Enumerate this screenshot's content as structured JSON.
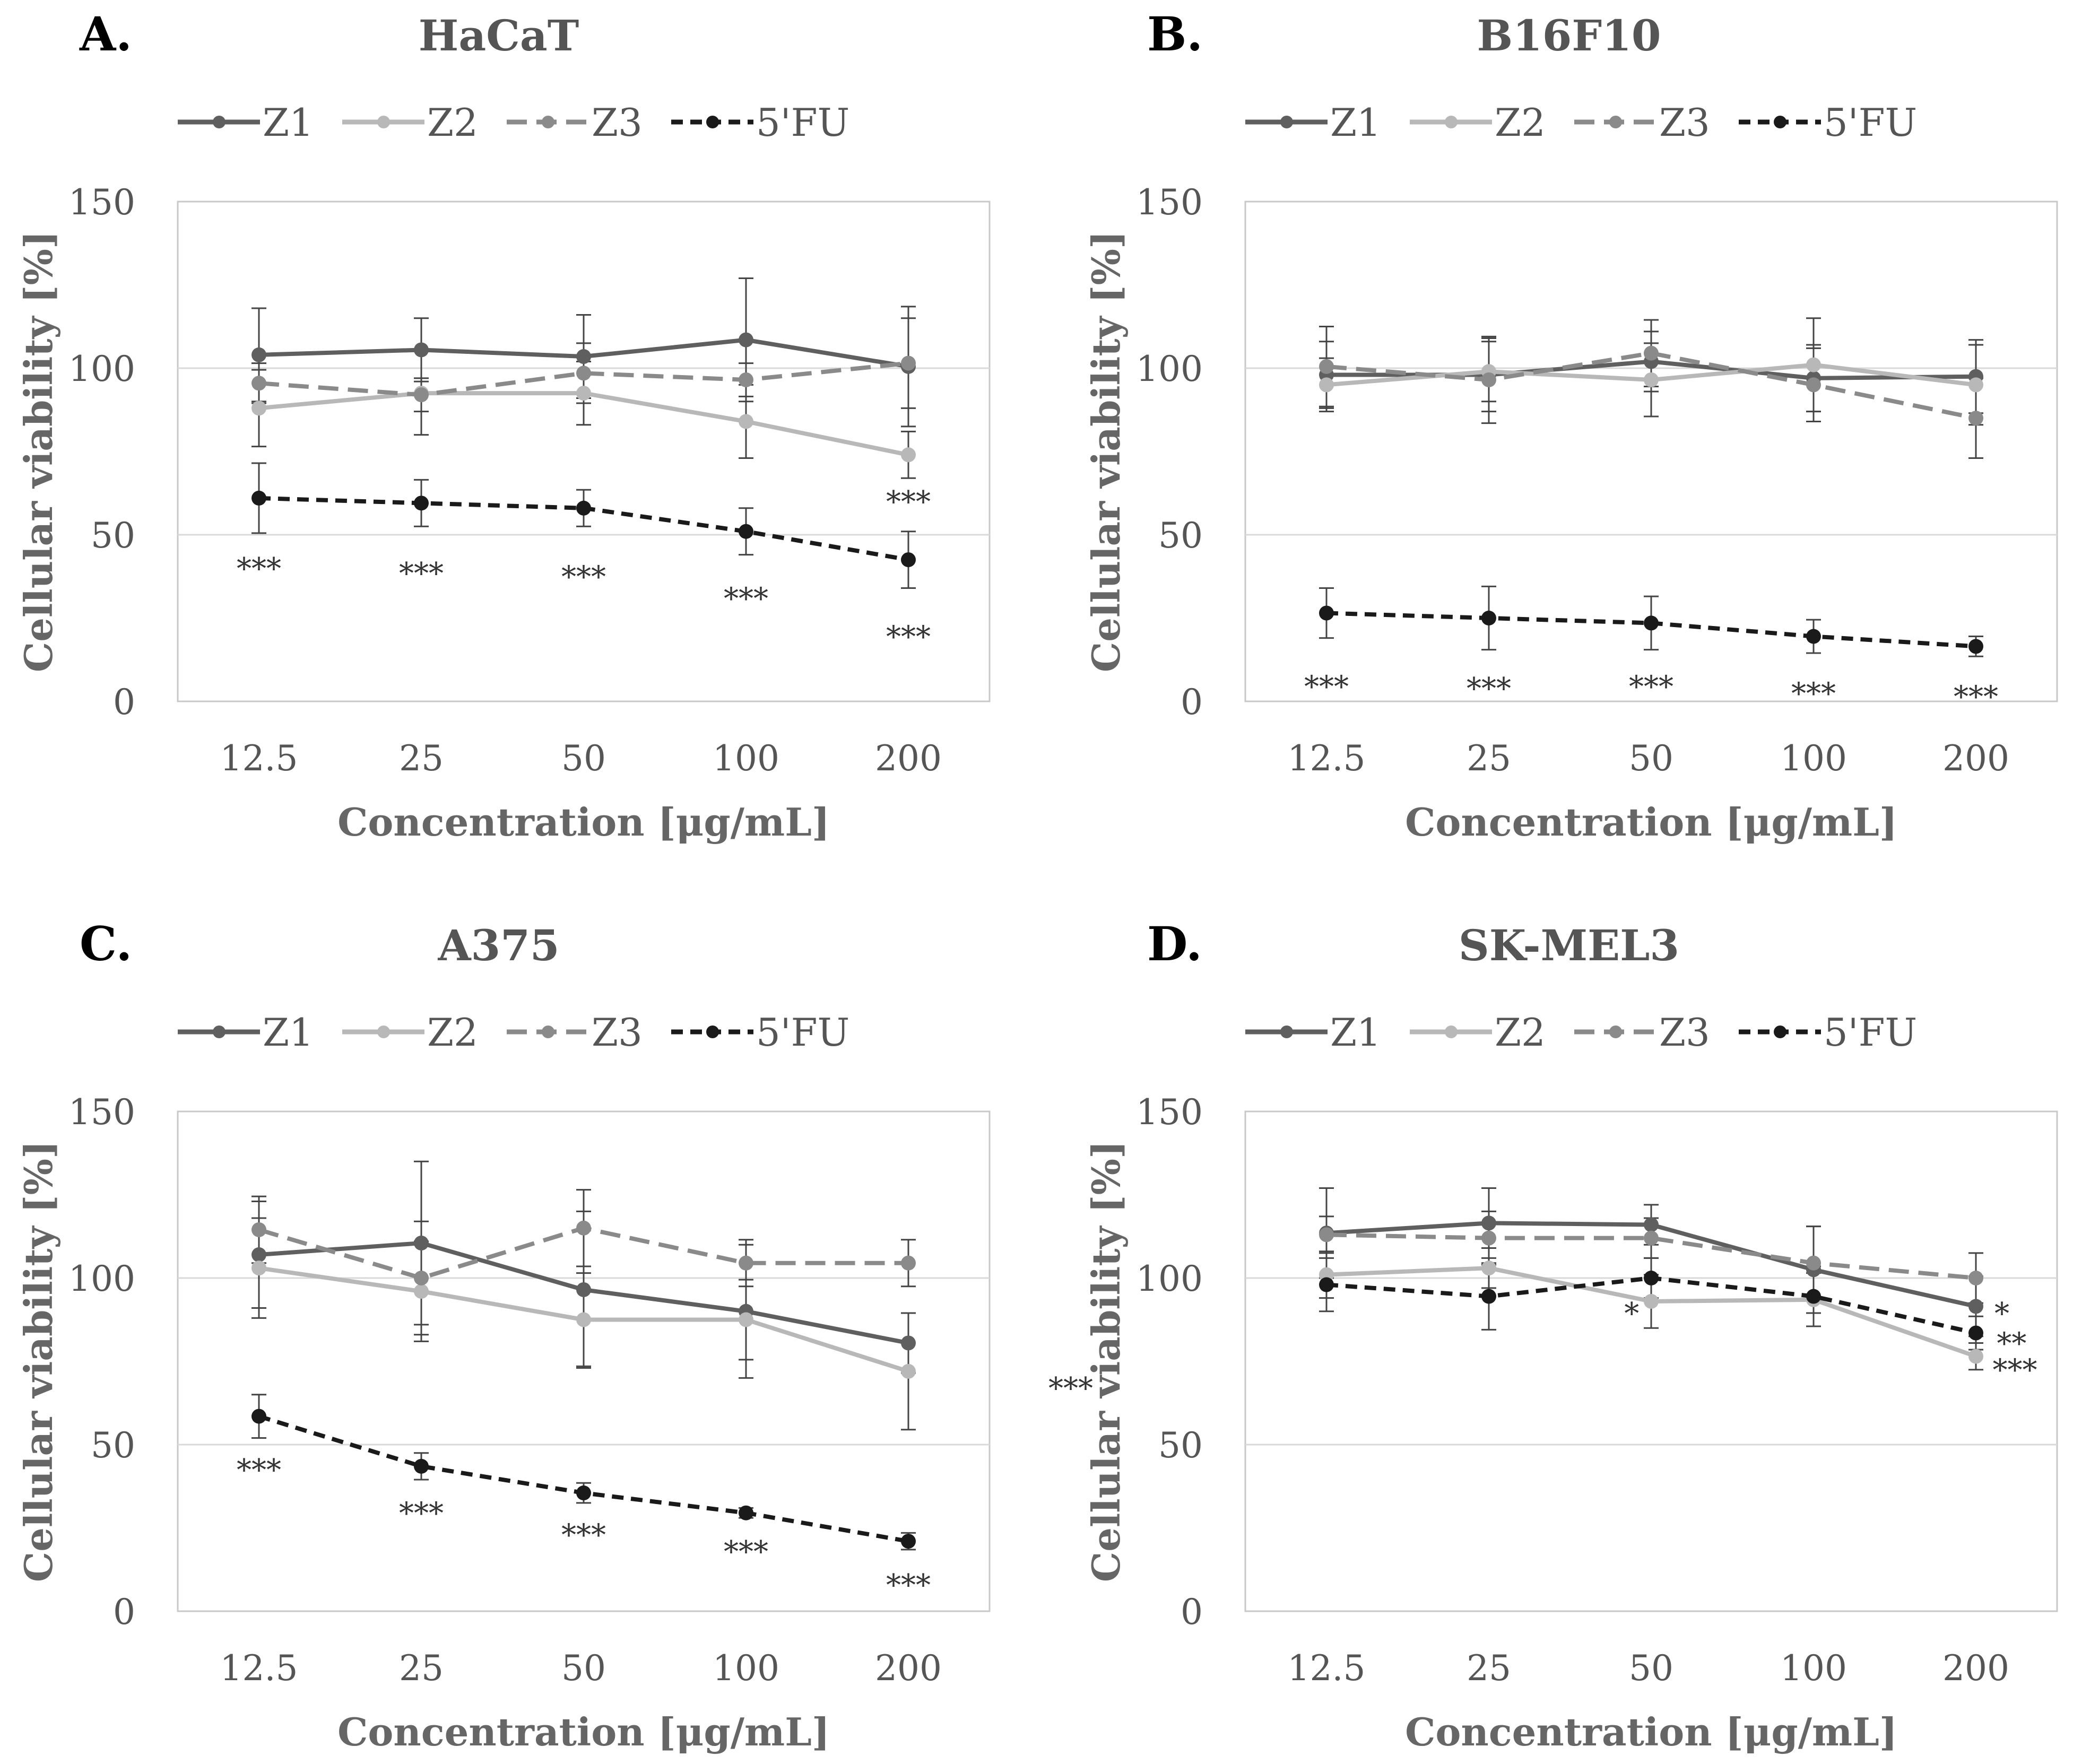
{
  "figure": {
    "shared_axes": {
      "xlabel": "Concentration [μg/mL]",
      "ylabel": "Cellular viability [%]"
    }
  },
  "legend": [
    {
      "name": "Z1",
      "color": "#5f5f5f",
      "dashed": false
    },
    {
      "name": "Z2",
      "color": "#b8b8b8",
      "dashed": false
    },
    {
      "name": "Z3",
      "color": "#8a8a8a",
      "dashed": true
    },
    {
      "name": "5'FU",
      "color": "#1a1a1a",
      "dashed": true
    }
  ],
  "chart_data": [
    {
      "panel": "A.",
      "title": "HaCaT",
      "type": "line",
      "categories": [
        "12.5",
        "25",
        "50",
        "100",
        "200"
      ],
      "xlabel": "Concentration [μg/mL]",
      "ylabel": "Cellular viability [%]",
      "ylim": [
        0,
        150
      ],
      "yticks": [
        0,
        50,
        100,
        150
      ],
      "grid": true,
      "legend_position": "top",
      "series": [
        {
          "name": "Z1",
          "values": [
            104,
            105.5,
            103.5,
            108.5,
            100.5
          ],
          "errors": [
            14,
            9.5,
            12.5,
            18.5,
            18
          ]
        },
        {
          "name": "Z2",
          "values": [
            88,
            92.5,
            92.5,
            84,
            74
          ],
          "errors": [
            11.5,
            12.5,
            9.5,
            11,
            7
          ]
        },
        {
          "name": "Z3",
          "values": [
            95.5,
            92,
            98.5,
            96.5,
            101.5
          ],
          "errors": [
            6,
            5,
            9,
            5,
            13.5
          ]
        },
        {
          "name": "5'FU",
          "values": [
            61,
            59.5,
            58,
            51,
            42.5
          ],
          "errors": [
            10.5,
            7,
            5.5,
            7,
            8.5
          ]
        }
      ],
      "annotations": [
        {
          "text": "***",
          "category": "12.5",
          "value": 40
        },
        {
          "text": "***",
          "category": "25",
          "value": 38.5
        },
        {
          "text": "***",
          "category": "50",
          "value": 37.5
        },
        {
          "text": "***",
          "category": "100",
          "value": 31
        },
        {
          "text": "***",
          "category": "200",
          "value": 19.5
        },
        {
          "text": "***",
          "category": "200",
          "value": 60
        }
      ]
    },
    {
      "panel": "B.",
      "title": "B16F10",
      "type": "line",
      "categories": [
        "12.5",
        "25",
        "50",
        "100",
        "200"
      ],
      "xlabel": "Concentration [μg/mL]",
      "ylabel": "Cellular viability [%]",
      "ylim": [
        0,
        150
      ],
      "yticks": [
        0,
        50,
        100,
        150
      ],
      "grid": true,
      "legend_position": "top",
      "series": [
        {
          "name": "Z1",
          "values": [
            98,
            98,
            102,
            97,
            97.5
          ],
          "errors": [
            10,
            11,
            9,
            10,
            11
          ]
        },
        {
          "name": "Z2",
          "values": [
            95,
            99,
            96.5,
            101,
            95
          ],
          "errors": [
            8,
            9,
            11,
            14,
            12
          ]
        },
        {
          "name": "Z3",
          "values": [
            100.5,
            96.5,
            104.5,
            95,
            85
          ],
          "errors": [
            12,
            13,
            10,
            11,
            12
          ]
        },
        {
          "name": "5'FU",
          "values": [
            26.5,
            25,
            23.5,
            19.5,
            16.5
          ],
          "errors": [
            7.5,
            9.5,
            8,
            5,
            3
          ]
        }
      ],
      "annotations": [
        {
          "text": "***",
          "category": "12.5",
          "value": 4.5
        },
        {
          "text": "***",
          "category": "25",
          "value": 4
        },
        {
          "text": "***",
          "category": "50",
          "value": 4.5
        },
        {
          "text": "***",
          "category": "100",
          "value": 2.5
        },
        {
          "text": "***",
          "category": "200",
          "value": 1.5
        }
      ]
    },
    {
      "panel": "C.",
      "title": "A375",
      "type": "line",
      "categories": [
        "12.5",
        "25",
        "50",
        "100",
        "200"
      ],
      "xlabel": "Concentration [μg/mL]",
      "ylabel": "Cellular viability [%]",
      "ylim": [
        0,
        150
      ],
      "yticks": [
        0,
        50,
        100,
        150
      ],
      "grid": true,
      "legend_position": "top",
      "series": [
        {
          "name": "Z1",
          "values": [
            107,
            110.5,
            96.5,
            90,
            80.5
          ],
          "errors": [
            16,
            24.5,
            23.5,
            20,
            9
          ]
        },
        {
          "name": "Z2",
          "values": [
            103,
            96,
            87.5,
            87.5,
            72
          ],
          "errors": [
            15,
            15,
            14,
            12,
            17.5
          ]
        },
        {
          "name": "Z3",
          "values": [
            114.5,
            100,
            115,
            104.5,
            104.5
          ],
          "errors": [
            10,
            17,
            11.5,
            7,
            7
          ]
        },
        {
          "name": "5'FU",
          "values": [
            58.5,
            43.5,
            35.5,
            29.5,
            21
          ],
          "errors": [
            6.5,
            4,
            3,
            1.5,
            2.5
          ]
        }
      ],
      "annotations": [
        {
          "text": "***",
          "category": "12.5",
          "value": 42.5
        },
        {
          "text": "***",
          "category": "25",
          "value": 29.5
        },
        {
          "text": "***",
          "category": "50",
          "value": 23
        },
        {
          "text": "***",
          "category": "100",
          "value": 18
        },
        {
          "text": "***",
          "category": "200",
          "value": 8
        },
        {
          "text": "***",
          "category": "200",
          "value": 67,
          "dx": 1
        }
      ]
    },
    {
      "panel": "D.",
      "title": "SK-MEL3",
      "type": "line",
      "categories": [
        "12.5",
        "25",
        "50",
        "100",
        "200"
      ],
      "xlabel": "Concentration [μg/mL]",
      "ylabel": "Cellular viability [%]",
      "ylim": [
        0,
        150
      ],
      "yticks": [
        0,
        50,
        100,
        150
      ],
      "grid": true,
      "legend_position": "top",
      "series": [
        {
          "name": "Z1",
          "values": [
            113.5,
            116.5,
            116,
            102.5,
            91.5
          ],
          "errors": [
            13.5,
            10.5,
            6,
            13,
            9
          ]
        },
        {
          "name": "Z2",
          "values": [
            101,
            103,
            93,
            93.5,
            76.5
          ],
          "errors": [
            7,
            6,
            8,
            8,
            4
          ]
        },
        {
          "name": "Z3",
          "values": [
            113,
            112,
            112,
            104.5,
            100
          ],
          "errors": [
            5.5,
            8,
            6,
            11,
            7.5
          ]
        },
        {
          "name": "5'FU",
          "values": [
            98,
            94.5,
            100,
            94.5,
            83.5
          ],
          "errors": [
            8,
            10,
            6,
            9,
            5
          ]
        }
      ],
      "annotations": [
        {
          "text": "*",
          "category": "50",
          "value": 89.5,
          "dx": -0.12
        },
        {
          "text": "*",
          "category": "200",
          "value": 89.5,
          "dx": 0.16
        },
        {
          "text": "**",
          "category": "200",
          "value": 80.5,
          "dx": 0.22
        },
        {
          "text": "***",
          "category": "200",
          "value": 72.5,
          "dx": 0.24
        }
      ]
    }
  ]
}
